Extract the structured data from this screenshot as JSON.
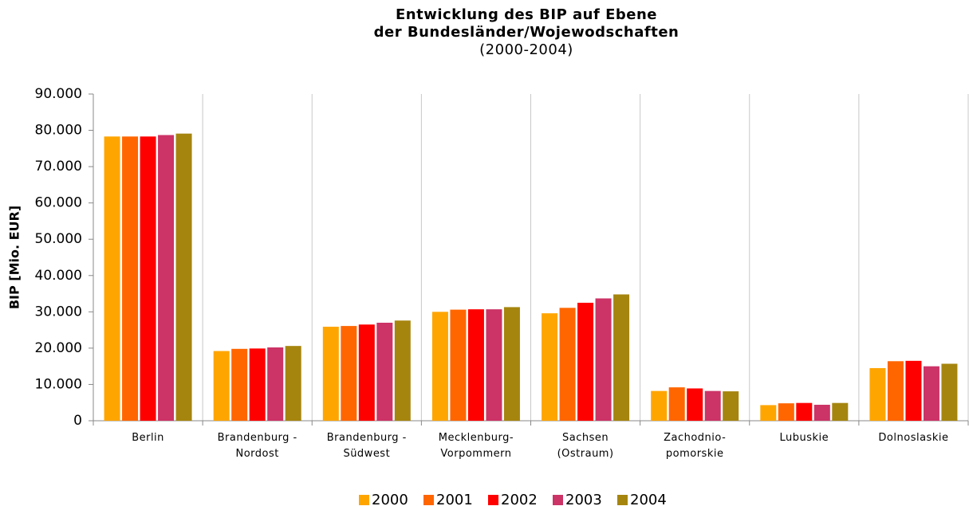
{
  "chart_data": {
    "type": "bar",
    "title": "Entwicklung des BIP auf Ebene\nder Bundesländer/Wojewodschaften",
    "subtitle": "(2000-2004)",
    "y_label": "BIP [Mio. EUR]",
    "categories": [
      "Berlin",
      "Brandenburg -\nNordost",
      "Brandenburg -\nSüdwest",
      "Mecklenburg-\nVorpommern",
      "Sachsen\n(Ostraum)",
      "Zachodnio-\npomorskie",
      "Lubuskie",
      "Dolnoslaskie"
    ],
    "series": [
      {
        "name": "2000",
        "color": "#FFA500",
        "values": [
          78300,
          19200,
          25900,
          30000,
          29600,
          8200,
          4300,
          14500
        ]
      },
      {
        "name": "2001",
        "color": "#FF6600",
        "values": [
          78300,
          19800,
          26100,
          30600,
          31100,
          9200,
          4800,
          16400
        ]
      },
      {
        "name": "2002",
        "color": "#FF0000",
        "values": [
          78300,
          19900,
          26500,
          30700,
          32500,
          8900,
          4900,
          16500
        ]
      },
      {
        "name": "2003",
        "color": "#CC3366",
        "values": [
          78700,
          20200,
          27000,
          30700,
          33700,
          8200,
          4400,
          15000
        ]
      },
      {
        "name": "2004",
        "color": "#A6850F",
        "values": [
          79100,
          20600,
          27600,
          31300,
          34800,
          8100,
          4900,
          15700
        ]
      }
    ],
    "ylim": [
      0,
      90000
    ],
    "yticks": [
      0,
      {
        "value": 10000,
        "label": "10.000"
      },
      {
        "value": 20000,
        "label": "20.000"
      },
      {
        "value": 30000,
        "label": "30.000"
      },
      {
        "value": 40000,
        "label": "40.000"
      },
      {
        "value": 50000,
        "label": "50.000"
      },
      {
        "value": 60000,
        "label": "60.000"
      },
      {
        "value": 70000,
        "label": "70.000"
      },
      {
        "value": 80000,
        "label": "80.000"
      },
      {
        "value": 90000,
        "label": "90.000"
      }
    ],
    "grid": true,
    "legend": "bottom"
  }
}
